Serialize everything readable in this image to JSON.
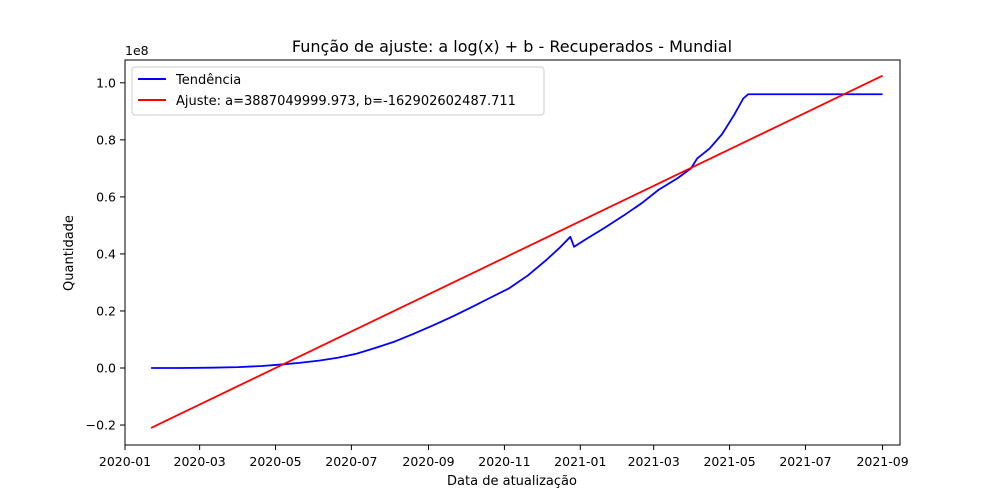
{
  "chart_data": {
    "type": "line",
    "title": "Função de ajuste: a log(x) + b - Recuperados - Mundial",
    "xlabel": "Data de atualização",
    "ylabel": "Quantidade",
    "y_scale_label": "1e8",
    "ylim": [
      -0.27,
      1.08
    ],
    "xlim": [
      "2020-01-01",
      "2021-09-15"
    ],
    "x_ticks": [
      "2020-01",
      "2020-03",
      "2020-05",
      "2020-07",
      "2020-09",
      "2020-11",
      "2021-01",
      "2021-03",
      "2021-05",
      "2021-07",
      "2021-09"
    ],
    "y_ticks": [
      -0.2,
      0.0,
      0.2,
      0.4,
      0.6,
      0.8,
      1.0
    ],
    "y_tick_labels": [
      "−0.2",
      "0.0",
      "0.2",
      "0.4",
      "0.6",
      "0.8",
      "1.0"
    ],
    "grid": false,
    "legend_position": "top-left",
    "series": [
      {
        "name": "Tendência",
        "color": "#0000ff",
        "points": [
          [
            "2020-01-22",
            0.0
          ],
          [
            "2020-02-15",
            0.0
          ],
          [
            "2020-03-10",
            0.001
          ],
          [
            "2020-04-01",
            0.003
          ],
          [
            "2020-04-20",
            0.007
          ],
          [
            "2020-05-05",
            0.012
          ],
          [
            "2020-05-20",
            0.018
          ],
          [
            "2020-06-05",
            0.026
          ],
          [
            "2020-06-20",
            0.036
          ],
          [
            "2020-07-05",
            0.05
          ],
          [
            "2020-07-20",
            0.07
          ],
          [
            "2020-08-05",
            0.093
          ],
          [
            "2020-08-20",
            0.12
          ],
          [
            "2020-09-05",
            0.15
          ],
          [
            "2020-09-20",
            0.18
          ],
          [
            "2020-10-05",
            0.212
          ],
          [
            "2020-10-20",
            0.245
          ],
          [
            "2020-11-05",
            0.28
          ],
          [
            "2020-11-20",
            0.325
          ],
          [
            "2020-12-05",
            0.38
          ],
          [
            "2020-12-15",
            0.42
          ],
          [
            "2020-12-24",
            0.46
          ],
          [
            "2020-12-27",
            0.425
          ],
          [
            "2021-01-05",
            0.45
          ],
          [
            "2021-01-20",
            0.49
          ],
          [
            "2021-02-05",
            0.535
          ],
          [
            "2021-02-20",
            0.58
          ],
          [
            "2021-03-05",
            0.625
          ],
          [
            "2021-03-20",
            0.665
          ],
          [
            "2021-03-31",
            0.7
          ],
          [
            "2021-04-05",
            0.735
          ],
          [
            "2021-04-15",
            0.77
          ],
          [
            "2021-04-25",
            0.82
          ],
          [
            "2021-05-05",
            0.89
          ],
          [
            "2021-05-12",
            0.945
          ],
          [
            "2021-05-16",
            0.96
          ],
          [
            "2021-06-15",
            0.96
          ],
          [
            "2021-07-15",
            0.96
          ],
          [
            "2021-08-15",
            0.96
          ],
          [
            "2021-09-01",
            0.96
          ]
        ]
      },
      {
        "name": "Ajuste: a=3887049999.973, b=-162902602487.711",
        "color": "#ff0000",
        "points": [
          [
            "2020-01-22",
            -0.21
          ],
          [
            "2021-09-01",
            1.025
          ]
        ]
      }
    ]
  }
}
